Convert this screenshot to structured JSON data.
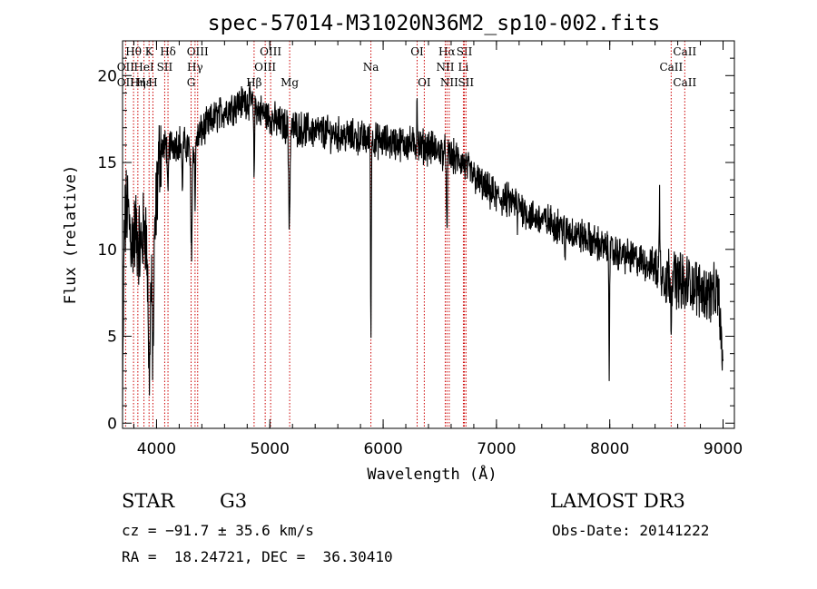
{
  "chart_data": {
    "type": "line",
    "title": "spec-57014-M31020N36M2_sp10-002.fits",
    "xlabel": "Wavelength (Å)",
    "ylabel": "Flux (relative)",
    "xlim": [
      3700,
      9100
    ],
    "ylim": [
      -0.3,
      22
    ],
    "x_ticks": [
      4000,
      5000,
      6000,
      7000,
      8000,
      9000
    ],
    "y_ticks": [
      0,
      5,
      10,
      15,
      20
    ],
    "x_tick_labels": [
      "4000",
      "5000",
      "6000",
      "7000",
      "8000",
      "9000"
    ],
    "y_tick_labels": [
      "0",
      "5",
      "10",
      "15",
      "20"
    ],
    "grid": false,
    "series": [
      {
        "name": "spectrum",
        "continuum_anchors": [
          [
            3700,
            0.5
          ],
          [
            3715,
            11.0
          ],
          [
            3740,
            12.5
          ],
          [
            3780,
            10.5
          ],
          [
            3820,
            11.0
          ],
          [
            3860,
            10.0
          ],
          [
            3900,
            11.5
          ],
          [
            3935,
            7.0
          ],
          [
            3970,
            8.0
          ],
          [
            4000,
            13.0
          ],
          [
            4030,
            15.8
          ],
          [
            4100,
            16.0
          ],
          [
            4200,
            16.2
          ],
          [
            4300,
            15.8
          ],
          [
            4400,
            16.8
          ],
          [
            4500,
            17.5
          ],
          [
            4600,
            18.0
          ],
          [
            4700,
            18.3
          ],
          [
            4800,
            18.6
          ],
          [
            4860,
            18.4
          ],
          [
            4900,
            18.0
          ],
          [
            5000,
            17.6
          ],
          [
            5100,
            17.2
          ],
          [
            5200,
            17.0
          ],
          [
            5400,
            16.8
          ],
          [
            5600,
            16.6
          ],
          [
            5800,
            16.4
          ],
          [
            5900,
            16.3
          ],
          [
            6000,
            16.2
          ],
          [
            6200,
            16.1
          ],
          [
            6400,
            15.9
          ],
          [
            6560,
            15.5
          ],
          [
            6700,
            15.0
          ],
          [
            6800,
            14.2
          ],
          [
            6900,
            13.5
          ],
          [
            7000,
            13.0
          ],
          [
            7100,
            12.8
          ],
          [
            7200,
            12.6
          ],
          [
            7300,
            11.9
          ],
          [
            7500,
            11.5
          ],
          [
            7700,
            10.9
          ],
          [
            7900,
            10.3
          ],
          [
            8000,
            9.9
          ],
          [
            8200,
            9.5
          ],
          [
            8400,
            9.0
          ],
          [
            8500,
            8.6
          ],
          [
            8600,
            8.3
          ],
          [
            8700,
            8.1
          ],
          [
            8800,
            7.7
          ],
          [
            8900,
            7.4
          ],
          [
            8960,
            7.5
          ],
          [
            9000,
            3.0
          ]
        ],
        "absorption_features": [
          [
            3934,
            4.5,
            6
          ],
          [
            3969,
            4.0,
            6
          ],
          [
            4101,
            3.5,
            4
          ],
          [
            4227,
            2.5,
            4
          ],
          [
            4308,
            6.0,
            6
          ],
          [
            4340,
            3.5,
            4
          ],
          [
            4861,
            4.0,
            4
          ],
          [
            5172,
            5.5,
            6
          ],
          [
            5892,
            11.5,
            3
          ],
          [
            6563,
            5.0,
            4
          ],
          [
            7186,
            1.5,
            3
          ],
          [
            7605,
            2.5,
            3
          ],
          [
            7995,
            6.5,
            3
          ],
          [
            8498,
            1.5,
            3
          ],
          [
            8542,
            2.5,
            3
          ],
          [
            8662,
            1.5,
            3
          ]
        ],
        "emission_features": [
          [
            6300,
            3.0,
            3
          ],
          [
            8440,
            4.0,
            3
          ]
        ],
        "noise_amplitude": 1.2
      }
    ],
    "line_markers": [
      {
        "label": "Hθ",
        "wavelength": 3797,
        "row": 1
      },
      {
        "label": "K",
        "wavelength": 3934,
        "row": 1
      },
      {
        "label": "Hδ",
        "wavelength": 4101,
        "row": 1
      },
      {
        "label": "OIII",
        "wavelength": 4363,
        "row": 1
      },
      {
        "label": "OIII",
        "wavelength": 5007,
        "row": 1
      },
      {
        "label": "OI",
        "wavelength": 6300,
        "row": 1
      },
      {
        "label": "Hα",
        "wavelength": 6563,
        "row": 1
      },
      {
        "label": "SII",
        "wavelength": 6717,
        "row": 1
      },
      {
        "label": "CaII",
        "wavelength": 8662,
        "row": 1
      },
      {
        "label": "OII",
        "wavelength": 3727,
        "row": 2
      },
      {
        "label": "HeI",
        "wavelength": 3889,
        "row": 2
      },
      {
        "label": "SII",
        "wavelength": 4072,
        "row": 2
      },
      {
        "label": "Hγ",
        "wavelength": 4340,
        "row": 2
      },
      {
        "label": "OIII",
        "wavelength": 4959,
        "row": 2
      },
      {
        "label": "Na",
        "wavelength": 5892,
        "row": 2
      },
      {
        "label": "NII",
        "wavelength": 6548,
        "row": 2
      },
      {
        "label": "Li",
        "wavelength": 6708,
        "row": 2
      },
      {
        "label": "CaII",
        "wavelength": 8542,
        "row": 2
      },
      {
        "label": "OII",
        "wavelength": 3727,
        "row": 3
      },
      {
        "label": "Hε",
        "wavelength": 3889,
        "row": 3
      },
      {
        "label": "Hη",
        "wavelength": 3835,
        "row": 3
      },
      {
        "label": "H",
        "wavelength": 3968,
        "row": 3
      },
      {
        "label": "G",
        "wavelength": 4305,
        "row": 3
      },
      {
        "label": "Hβ",
        "wavelength": 4861,
        "row": 3
      },
      {
        "label": "Mg",
        "wavelength": 5175,
        "row": 3
      },
      {
        "label": "OI",
        "wavelength": 6363,
        "row": 3
      },
      {
        "label": "NII",
        "wavelength": 6583,
        "row": 3
      },
      {
        "label": "SII",
        "wavelength": 6731,
        "row": 3
      },
      {
        "label": "CaII",
        "wavelength": 8662,
        "row": 3
      }
    ],
    "marker_color": "#cc0000"
  },
  "info": {
    "class": "STAR",
    "subclass": "G3",
    "survey": "LAMOST DR3",
    "cz": "cz = −91.7 ± 35.6 km/s",
    "obs_date": "Obs-Date: 20141222",
    "coords": "RA =  18.24721, DEC =  36.30410"
  }
}
